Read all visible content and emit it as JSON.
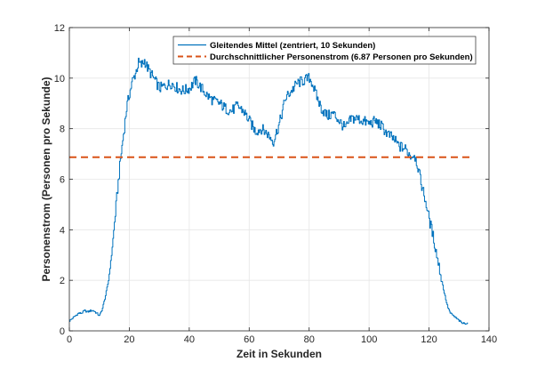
{
  "chart_data": {
    "type": "line",
    "title": "",
    "xlabel": "Zeit in Sekunden",
    "ylabel": "Personenstrom (Personen pro Sekunde)",
    "xlim": [
      0,
      140
    ],
    "ylim": [
      0,
      12
    ],
    "xticks": [
      0,
      20,
      40,
      60,
      80,
      100,
      120,
      140
    ],
    "yticks": [
      0,
      2,
      4,
      6,
      8,
      10,
      12
    ],
    "grid": true,
    "legend_position": "top-right",
    "series": [
      {
        "name": "Gleitendes Mittel (zentriert, 10 Sekunden)",
        "style": "solid",
        "color": "#0072BD",
        "x": [
          0,
          1,
          2,
          3,
          4,
          5,
          6,
          7,
          8,
          9,
          10,
          11,
          12,
          13,
          14,
          15,
          16,
          17,
          18,
          19,
          20,
          21,
          22,
          23,
          24,
          25,
          26,
          27,
          28,
          29,
          30,
          32,
          34,
          36,
          38,
          40,
          42,
          44,
          46,
          48,
          50,
          52,
          54,
          56,
          58,
          60,
          62,
          64,
          66,
          68,
          70,
          72,
          74,
          76,
          78,
          80,
          81,
          82,
          84,
          86,
          88,
          90,
          92,
          94,
          96,
          98,
          100,
          102,
          104,
          106,
          108,
          110,
          112,
          114,
          115,
          116,
          117,
          118,
          119,
          120,
          121,
          122,
          123,
          124,
          125,
          126,
          127,
          128,
          129,
          130,
          131,
          132,
          133
        ],
        "y": [
          0.4,
          0.5,
          0.6,
          0.7,
          0.7,
          0.8,
          0.75,
          0.8,
          0.8,
          0.7,
          0.6,
          0.9,
          1.4,
          2.0,
          3.0,
          4.3,
          5.6,
          6.8,
          7.8,
          8.8,
          9.4,
          9.9,
          10.2,
          10.6,
          10.5,
          10.7,
          10.4,
          10.2,
          10.0,
          9.8,
          9.6,
          9.7,
          9.8,
          9.6,
          9.5,
          9.6,
          9.9,
          9.6,
          9.3,
          9.1,
          9.0,
          8.8,
          8.7,
          8.9,
          8.7,
          8.3,
          7.9,
          8.0,
          7.8,
          7.5,
          8.2,
          9.2,
          9.5,
          9.8,
          9.9,
          10.0,
          9.8,
          9.4,
          8.8,
          8.5,
          8.6,
          8.3,
          8.0,
          8.4,
          8.4,
          8.3,
          8.2,
          8.3,
          8.1,
          7.8,
          7.6,
          7.3,
          7.2,
          6.9,
          7.0,
          6.6,
          6.0,
          5.5,
          5.0,
          4.4,
          3.9,
          3.3,
          2.7,
          2.1,
          1.5,
          1.0,
          0.7,
          0.6,
          0.5,
          0.4,
          0.3,
          0.3,
          0.3
        ]
      },
      {
        "name": "Durchschnittlicher Personenstrom (6.87 Personen pro Sekunden)",
        "style": "dashed",
        "color": "#D95319",
        "x": [
          0,
          134
        ],
        "y": [
          6.87,
          6.87
        ]
      }
    ]
  }
}
